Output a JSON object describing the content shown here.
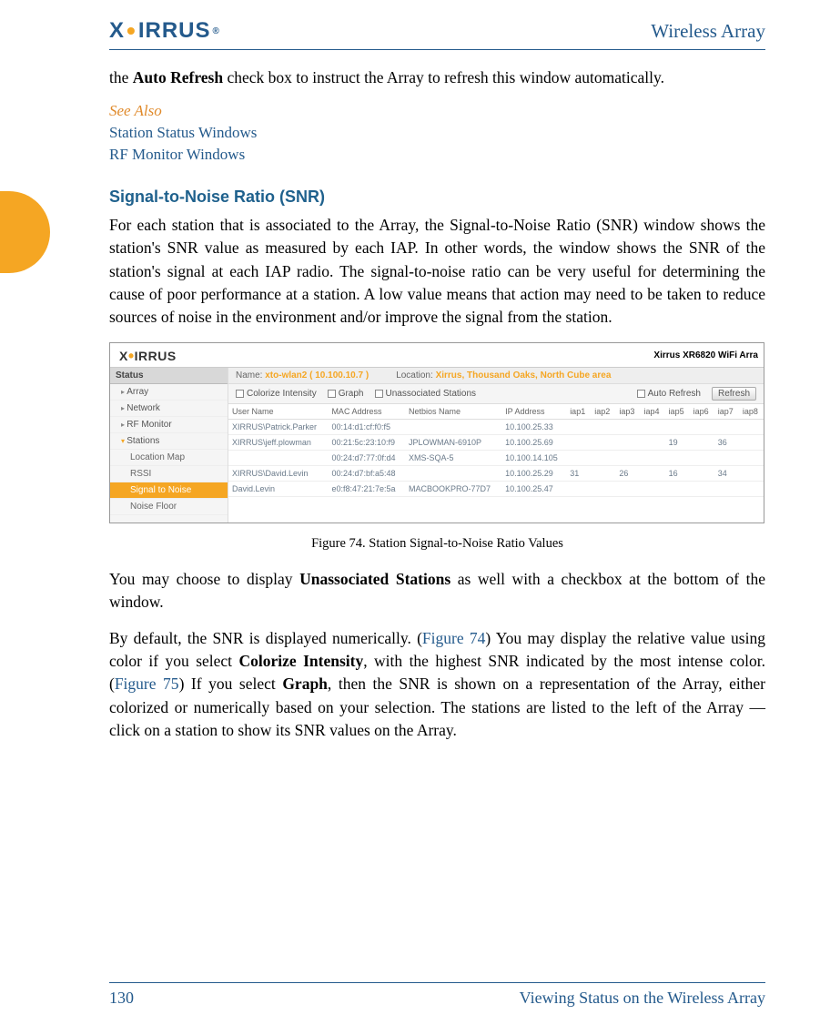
{
  "header": {
    "logo_text": "XIRRUS",
    "title": "Wireless Array"
  },
  "side_tab_color": "#f5a623",
  "intro": {
    "prefix": "the ",
    "bold": "Auto Refresh",
    "suffix": " check box to instruct the Array to refresh this window automatically."
  },
  "see_also": {
    "label": "See Also",
    "links": [
      "Station Status Windows",
      "RF Monitor Windows"
    ]
  },
  "section": {
    "title": "Signal-to-Noise Ratio (SNR)",
    "para": "For each station that is associated to the Array, the Signal-to-Noise Ratio (SNR) window shows the station's SNR value as measured by each IAP. In other words, the window shows the SNR of the station's signal at each IAP radio. The signal-to-noise ratio can be very useful for determining the cause of poor performance at a station. A low value means that action may need to be taken to reduce sources of noise in the environment and/or improve the signal from the station."
  },
  "screenshot": {
    "logo": "XIRRUS",
    "model": "Xirrus XR6820 WiFi Arra",
    "sidebar": {
      "header": "Status",
      "items": [
        "Array",
        "Network",
        "RF Monitor"
      ],
      "open_item": "Stations",
      "subs": [
        "Location Map",
        "RSSI",
        "Signal to Noise",
        "Noise Floor"
      ],
      "active_sub": "Signal to Noise"
    },
    "bar1": {
      "name_label": "Name:",
      "name_val": "xto-wlan2   ( 10.100.10.7 )",
      "loc_label": "Location:",
      "loc_val": "Xirrus, Thousand Oaks, North Cube area"
    },
    "bar2": {
      "cb1": "Colorize Intensity",
      "cb2": "Graph",
      "cb3": "Unassociated Stations",
      "cb4": "Auto Refresh",
      "btn": "Refresh"
    },
    "table": {
      "cols": [
        "User Name",
        "MAC Address",
        "Netbios Name",
        "IP Address",
        "iap1",
        "iap2",
        "iap3",
        "iap4",
        "iap5",
        "iap6",
        "iap7",
        "iap8"
      ],
      "rows": [
        [
          "XIRRUS\\Patrick.Parker",
          "00:14:d1:cf:f0:f5",
          "",
          "10.100.25.33",
          "",
          "",
          "",
          "",
          "",
          "",
          "",
          ""
        ],
        [
          "XIRRUS\\jeff.plowman",
          "00:21:5c:23:10:f9",
          "JPLOWMAN-6910P",
          "10.100.25.69",
          "",
          "",
          "",
          "",
          "19",
          "",
          "36",
          ""
        ],
        [
          "",
          "00:24:d7:77:0f:d4",
          "XMS-SQA-5",
          "10.100.14.105",
          "",
          "",
          "",
          "",
          "",
          "",
          "",
          ""
        ],
        [
          "XIRRUS\\David.Levin",
          "00:24:d7:bf:a5:48",
          "",
          "10.100.25.29",
          "31",
          "",
          "26",
          "",
          "16",
          "",
          "34",
          ""
        ],
        [
          "David.Levin",
          "e0:f8:47:21:7e:5a",
          "MACBOOKPRO-77D7",
          "10.100.25.47",
          "",
          "",
          "",
          "",
          "",
          "",
          "",
          ""
        ]
      ]
    }
  },
  "caption": "Figure 74. Station Signal-to-Noise Ratio Values",
  "para2": {
    "p1": "You may choose to display ",
    "b1": "Unassociated Stations",
    "p2": " as well with a checkbox at the bottom of the window."
  },
  "para3": {
    "t1": "By default, the SNR is displayed numerically. (",
    "l1": "Figure 74",
    "t2": ") You may display the relative value using color if you select ",
    "b1": "Colorize Intensity",
    "t3": ", with the highest SNR indicated by the most intense color. (",
    "l2": "Figure 75",
    "t4": ") If you select ",
    "b2": "Graph",
    "t5": ", then the SNR is shown on a representation of the Array, either colorized or numerically based on your selection. The stations are listed to the left of the Array — click on a station to show its SNR values on the Array."
  },
  "footer": {
    "page": "130",
    "title": "Viewing Status on the Wireless Array"
  }
}
